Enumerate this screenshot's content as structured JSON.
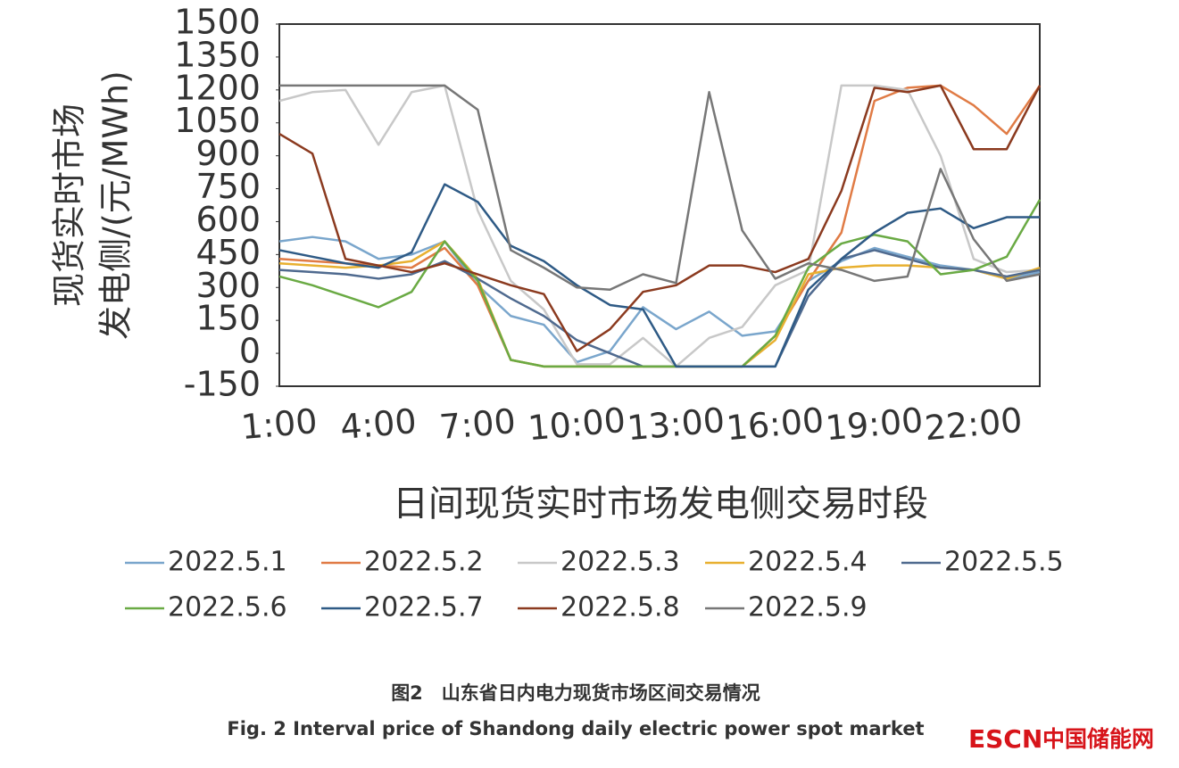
{
  "chart_data": {
    "type": "line",
    "x_label": "日间现货实时市场发电侧交易时段",
    "y_label": [
      "现货实时市场",
      "发电侧/(元/MWh)"
    ],
    "categories": [
      "1:00",
      null,
      null,
      "4:00",
      null,
      null,
      "7:00",
      null,
      null,
      "10:00",
      null,
      null,
      "13:00",
      null,
      null,
      "16:00",
      null,
      null,
      "19:00",
      null,
      null,
      "22:00",
      null,
      null
    ],
    "ylim": [
      -150,
      1500
    ],
    "yticks": [
      -150,
      0,
      150,
      300,
      450,
      600,
      750,
      900,
      1050,
      1200,
      1350,
      1500
    ],
    "grid": false,
    "series": [
      {
        "name": "2022.5.1",
        "color": "#7aa6cc",
        "values": [
          510,
          530,
          510,
          430,
          450,
          510,
          310,
          170,
          130,
          -40,
          10,
          210,
          110,
          190,
          80,
          100,
          330,
          420,
          480,
          440,
          400,
          380,
          340,
          370
        ]
      },
      {
        "name": "2022.5.2",
        "color": "#e07b45",
        "values": [
          430,
          420,
          410,
          400,
          390,
          480,
          310,
          -30,
          -60,
          -60,
          -60,
          -60,
          -60,
          -60,
          -60,
          80,
          330,
          550,
          1150,
          1210,
          1220,
          1130,
          1000,
          1220
        ]
      },
      {
        "name": "2022.5.3",
        "color": "#c8c8c8",
        "values": [
          1150,
          1190,
          1200,
          950,
          1190,
          1220,
          650,
          330,
          200,
          -50,
          -50,
          70,
          -60,
          70,
          120,
          310,
          380,
          1220,
          1220,
          1200,
          900,
          430,
          370,
          380
        ]
      },
      {
        "name": "2022.5.4",
        "color": "#e8b030",
        "values": [
          410,
          400,
          390,
          400,
          420,
          510,
          340,
          -30,
          -60,
          -60,
          -60,
          -60,
          -60,
          -60,
          -60,
          60,
          360,
          390,
          400,
          400,
          390,
          380,
          340,
          390
        ]
      },
      {
        "name": "2022.5.5",
        "color": "#4f6a8f",
        "values": [
          380,
          370,
          360,
          340,
          360,
          420,
          340,
          250,
          170,
          60,
          0,
          -60,
          -60,
          -60,
          -60,
          -60,
          260,
          430,
          470,
          430,
          390,
          380,
          350,
          380
        ]
      },
      {
        "name": "2022.5.6",
        "color": "#6aaa44",
        "values": [
          350,
          310,
          260,
          210,
          280,
          510,
          330,
          -30,
          -60,
          -60,
          -60,
          -60,
          -60,
          -60,
          -60,
          80,
          390,
          500,
          540,
          510,
          360,
          380,
          440,
          700
        ]
      },
      {
        "name": "2022.5.7",
        "color": "#2e5a85",
        "values": [
          470,
          440,
          410,
          390,
          460,
          770,
          690,
          490,
          420,
          310,
          220,
          200,
          -60,
          -60,
          -60,
          -60,
          290,
          430,
          550,
          640,
          660,
          570,
          620,
          620
        ]
      },
      {
        "name": "2022.5.8",
        "color": "#8b3a1f",
        "values": [
          1000,
          910,
          430,
          400,
          370,
          410,
          360,
          310,
          270,
          10,
          110,
          280,
          310,
          400,
          400,
          370,
          430,
          740,
          1210,
          1190,
          1220,
          930,
          930,
          1220
        ]
      },
      {
        "name": "2022.5.9",
        "color": "#777777",
        "values": [
          1220,
          1220,
          1220,
          1220,
          1220,
          1220,
          1110,
          470,
          390,
          300,
          290,
          360,
          320,
          1190,
          560,
          340,
          410,
          380,
          330,
          350,
          840,
          520,
          330,
          360
        ]
      }
    ]
  },
  "caption": [
    "图2　山东省日内电力现货市场区间交易情况",
    "Fig. 2   Interval price of Shandong daily electric power spot market"
  ],
  "watermark": [
    "ESCN",
    "中国储能网"
  ]
}
